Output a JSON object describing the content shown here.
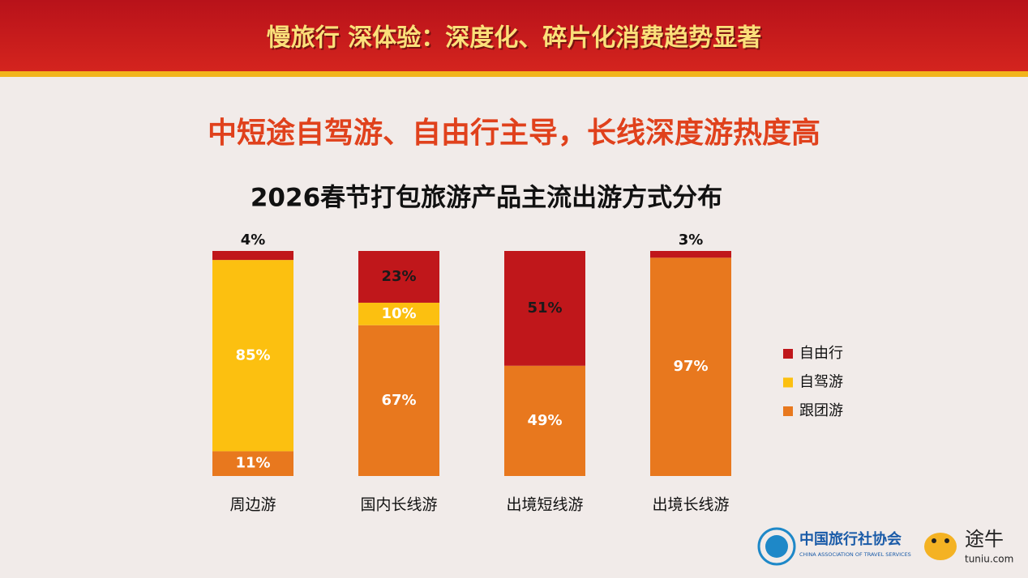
{
  "header": "慢旅行  深体验：深度化、碎片化消费趋势显著",
  "subtitle": "中短途自驾游、自由行主导，长线深度游热度高",
  "logos": {
    "association": "中国旅行社协会",
    "association_en": "CHINA ASSOCIATION OF TRAVEL SERVICES",
    "brand": "途牛",
    "brand_url": "tuniu.com"
  },
  "chart_data": {
    "type": "stacked_bar",
    "title": "2026春节打包旅游产品主流出游方式分布",
    "categories": [
      "周边游",
      "国内长线游",
      "出境短线游",
      "出境长线游"
    ],
    "series": [
      {
        "name": "自由行",
        "color": "#c0171b",
        "label_color": "#1a1a1a",
        "values": [
          4,
          23,
          51,
          3
        ],
        "value_labels": [
          "4%",
          "23%",
          "51%",
          "3%"
        ]
      },
      {
        "name": "自驾游",
        "color": "#fcc010",
        "label_color": "#ffffff",
        "values": [
          85,
          10,
          0,
          0
        ],
        "value_labels": [
          "85%",
          "10%",
          null,
          null
        ]
      },
      {
        "name": "跟团游",
        "color": "#e8781e",
        "label_color": "#ffffff",
        "values": [
          11,
          67,
          49,
          97
        ],
        "value_labels": [
          "11%",
          "67%",
          "49%",
          "97%"
        ]
      }
    ],
    "legend": "right"
  }
}
